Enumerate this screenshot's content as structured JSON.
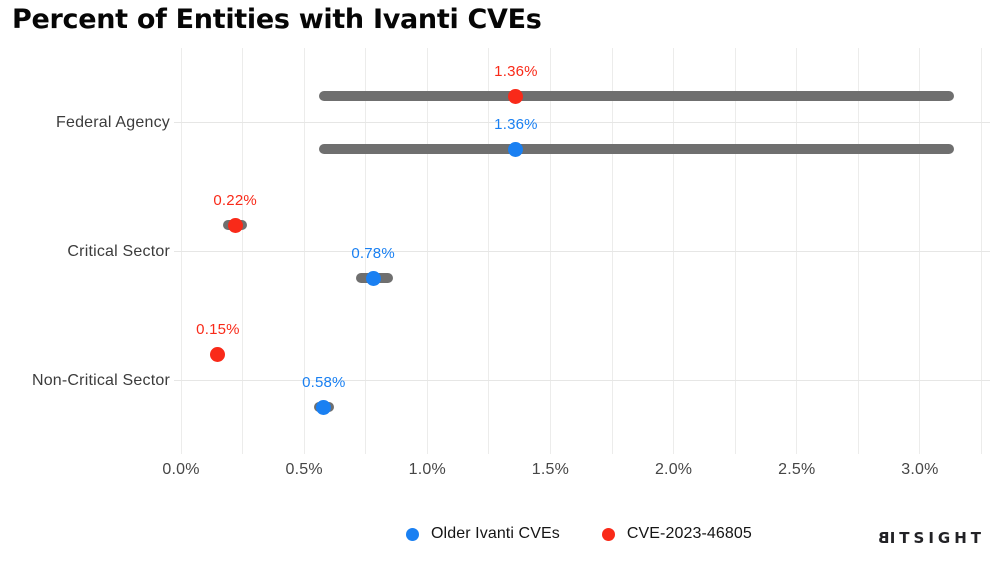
{
  "title": "Percent of Entities with Ivanti CVEs",
  "colors": {
    "blue": "#1a80f2",
    "red": "#f92a19",
    "bar": "#6f6f6f",
    "grid": "#ececeb",
    "axis_text": "#464646"
  },
  "chart_data": {
    "type": "scatter",
    "title": "Percent of Entities with Ivanti CVEs",
    "xlabel": "",
    "ylabel": "",
    "xlim": [
      0,
      3.25
    ],
    "grid": true,
    "legend_position": "bottom",
    "categories": [
      "Federal Agency",
      "Critical Sector",
      "Non-Critical Sector"
    ],
    "x_axis": {
      "tick_labels": [
        "0.0%",
        "0.5%",
        "1.0%",
        "1.5%",
        "2.0%",
        "2.5%",
        "3.0%"
      ],
      "tick_values": [
        0,
        0.5,
        1.0,
        1.5,
        2.0,
        2.5,
        3.0
      ],
      "minor_step": 0.25,
      "max": 3.25
    },
    "series": [
      {
        "name": "CVE-2023-46805",
        "color_key": "red",
        "row": 0,
        "points": [
          {
            "category": "Federal Agency",
            "value": 1.36,
            "label": "1.36%",
            "ci": [
              0.56,
              3.14
            ]
          },
          {
            "category": "Critical Sector",
            "value": 0.22,
            "label": "0.22%",
            "ci": [
              0.17,
              0.27
            ]
          },
          {
            "category": "Non-Critical Sector",
            "value": 0.15,
            "label": "0.15%",
            "ci": null
          }
        ]
      },
      {
        "name": "Older Ivanti CVEs",
        "color_key": "blue",
        "row": 1,
        "points": [
          {
            "category": "Federal Agency",
            "value": 1.36,
            "label": "1.36%",
            "ci": [
              0.56,
              3.14
            ]
          },
          {
            "category": "Critical Sector",
            "value": 0.78,
            "label": "0.78%",
            "ci": [
              0.71,
              0.86
            ]
          },
          {
            "category": "Non-Critical Sector",
            "value": 0.58,
            "label": "0.58%",
            "ci": [
              0.54,
              0.62
            ]
          }
        ]
      }
    ]
  },
  "legend": {
    "items": [
      {
        "label": "Older Ivanti CVEs",
        "color_key": "blue"
      },
      {
        "label": "CVE-2023-46805",
        "color_key": "red"
      }
    ]
  },
  "logo": {
    "text": "BITSIGHT",
    "first": "B",
    "rest": "ITSIGHT"
  }
}
